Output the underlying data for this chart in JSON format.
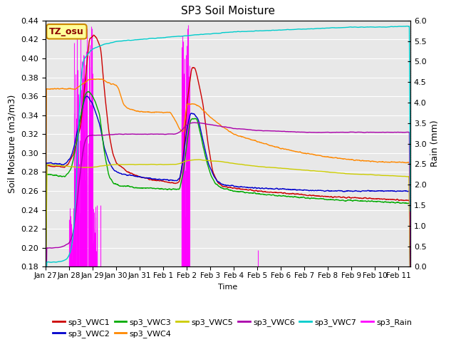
{
  "title": "SP3 Soil Moisture",
  "xlabel": "Time",
  "ylabel_left": "Soil Moisture (m3/m3)",
  "ylabel_right": "Rain (mm)",
  "ylim_left": [
    0.18,
    0.44
  ],
  "ylim_right": [
    0.0,
    6.0
  ],
  "yticks_left": [
    0.18,
    0.2,
    0.22,
    0.24,
    0.26,
    0.28,
    0.3,
    0.32,
    0.34,
    0.36,
    0.38,
    0.4,
    0.42,
    0.44
  ],
  "yticks_right": [
    0.0,
    0.5,
    1.0,
    1.5,
    2.0,
    2.5,
    3.0,
    3.5,
    4.0,
    4.5,
    5.0,
    5.5,
    6.0
  ],
  "background_color": "#e8e8e8",
  "grid_color": "#ffffff",
  "series_colors": {
    "sp3_VWC1": "#cc0000",
    "sp3_VWC2": "#0000cc",
    "sp3_VWC3": "#00aa00",
    "sp3_VWC4": "#ff8800",
    "sp3_VWC5": "#cccc00",
    "sp3_VWC6": "#aa00aa",
    "sp3_VWC7": "#00cccc",
    "sp3_Rain": "#ff00ff"
  },
  "annotation_text": "TZ_osu",
  "annotation_bg": "#ffff99",
  "annotation_border": "#cc8800",
  "xtick_labels": [
    "Jan 27",
    "Jan 28",
    "Jan 29",
    "Jan 30",
    "Jan 31",
    "Feb 1",
    "Feb 2",
    "Feb 3",
    "Feb 4",
    "Feb 5",
    "Feb 6",
    "Feb 7",
    "Feb 8",
    "Feb 9",
    "Feb 10",
    "Feb 11"
  ],
  "legend_rows": [
    [
      "sp3_VWC1",
      "sp3_VWC2",
      "sp3_VWC3",
      "sp3_VWC4",
      "sp3_VWC5",
      "sp3_VWC6"
    ],
    [
      "sp3_VWC7",
      "sp3_Rain"
    ]
  ]
}
